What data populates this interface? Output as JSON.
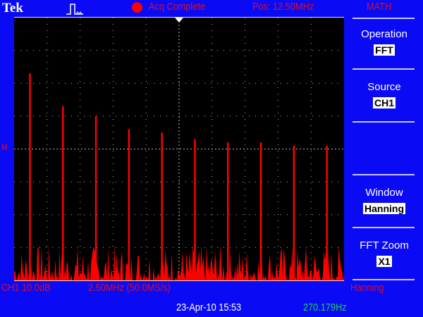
{
  "header": {
    "brand": "Tek",
    "trigger_icon": "pulse-trigger-icon",
    "acq_status": "Acq Complete",
    "position": "Pos: 12.50MHz",
    "menu_title": "MATH"
  },
  "menu": [
    {
      "label": "Operation",
      "value": "FFT"
    },
    {
      "label": "Source",
      "value": "CH1"
    },
    {
      "label": "",
      "value": ""
    },
    {
      "label": "Window",
      "value": "Hanning"
    },
    {
      "label": "FFT Zoom",
      "value": "X1"
    }
  ],
  "footer": {
    "ch1_scale": "CH1 10.0dB",
    "freq_scale": "2.50MHz (50.0MS/s)",
    "window": "Hanning",
    "datetime": "23-Apr-10 15:53",
    "trigger_freq": "270.179Hz"
  },
  "marker": {
    "math": "M"
  },
  "colors": {
    "background": "#0a0af5",
    "trace": "#ff0000",
    "text_red": "#d8102a",
    "freq": "#1cd24a"
  },
  "chart_data": {
    "type": "line",
    "x_unit": "MHz",
    "y_unit": "div (10.0dB/div)",
    "xlim": [
      0,
      25
    ],
    "ylim": [
      0,
      8
    ],
    "grid": true,
    "peaks": [
      {
        "x": 1.2,
        "y": 6.3
      },
      {
        "x": 3.7,
        "y": 5.3
      },
      {
        "x": 6.2,
        "y": 5.0
      },
      {
        "x": 8.7,
        "y": 4.6
      },
      {
        "x": 11.2,
        "y": 4.5
      },
      {
        "x": 13.7,
        "y": 4.3
      },
      {
        "x": 16.2,
        "y": 4.2
      },
      {
        "x": 18.7,
        "y": 4.2
      },
      {
        "x": 21.2,
        "y": 4.1
      },
      {
        "x": 23.7,
        "y": 4.1
      }
    ],
    "noise_floor": [
      0,
      1.0
    ]
  }
}
